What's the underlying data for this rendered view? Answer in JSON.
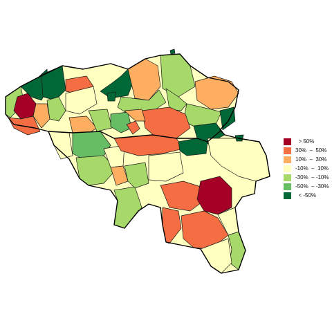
{
  "colors": {
    "gt50": "#a50026",
    "p30_50": "#f46d43",
    "p10_30": "#fdae61",
    "m10_10": "#ffffc0",
    "m30_m10": "#a6d96a",
    "m50_m30": "#66bd63",
    "lt_m50": "#006837"
  },
  "legend": {
    "items": [
      {
        "label": "  > 50%",
        "color_key": "gt50"
      },
      {
        "label": "30%  –  50%",
        "color_key": "p30_50"
      },
      {
        "label": "10%  –  30%",
        "color_key": "p10_30"
      },
      {
        "label": "-10%  –  10%",
        "color_key": "m10_10"
      },
      {
        "label": "-30%  – -10%",
        "color_key": "m30_m10"
      },
      {
        "label": "-50%  – -30%",
        "color_key": "m50_m30"
      },
      {
        "label": "  < -50%",
        "color_key": "lt_m50"
      }
    ]
  }
}
